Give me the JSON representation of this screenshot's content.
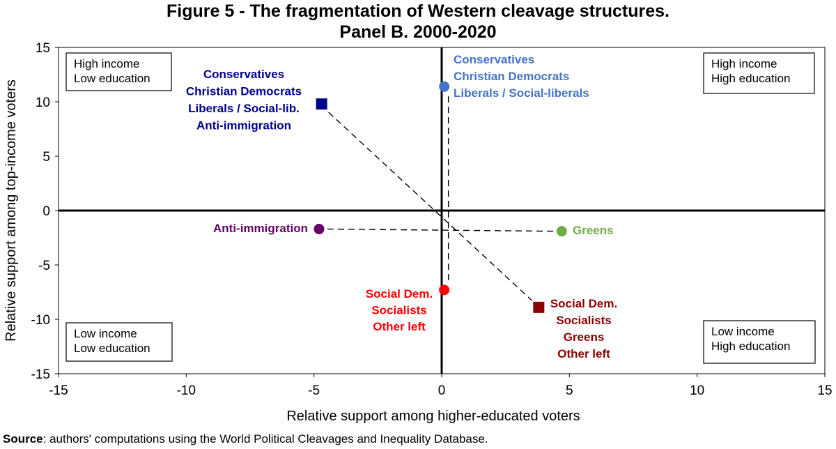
{
  "chart_data": {
    "type": "scatter",
    "title": "Figure 5 - The fragmentation of Western cleavage structures.",
    "subtitle": "Panel B. 2000-2020",
    "xlabel": "Relative support among higher-educated voters",
    "ylabel": "Relative support among top-income voters",
    "xlim": [
      -15,
      15
    ],
    "ylim": [
      -15,
      15
    ],
    "xticks": [
      -15,
      -10,
      -5,
      0,
      5,
      10,
      15
    ],
    "yticks": [
      -15,
      -10,
      -5,
      0,
      5,
      10,
      15
    ],
    "xtick_labels": [
      "-15",
      "-10",
      "-5",
      "0",
      "5",
      "10",
      "15"
    ],
    "ytick_labels": [
      "-15",
      "-10",
      "-5",
      "0",
      "5",
      "10",
      "15"
    ],
    "points": [
      {
        "id": "right-bloc",
        "x": -4.7,
        "y": 9.8,
        "marker": "square",
        "color": "#00008b",
        "label": [
          "Conservatives",
          "Christian Democrats",
          "Liberals / Social-lib.",
          "Anti-immigration"
        ]
      },
      {
        "id": "left-bloc",
        "x": 3.8,
        "y": -8.9,
        "marker": "square",
        "color": "#8b0000",
        "label": [
          "Social Dem.",
          "Socialists",
          "Greens",
          "Other left"
        ]
      },
      {
        "id": "conservatives-liberals",
        "x": 0.1,
        "y": 11.4,
        "marker": "circle",
        "color": "#4472c4",
        "label": [
          "Conservatives",
          "Christian Democrats",
          "Liberals / Social-liberals"
        ]
      },
      {
        "id": "social-dem-other-left",
        "x": 0.1,
        "y": -7.3,
        "marker": "circle",
        "color": "#ff0000",
        "label": [
          "Social Dem.",
          "Socialists",
          "Other left"
        ]
      },
      {
        "id": "anti-immigration",
        "x": -4.8,
        "y": -1.7,
        "marker": "circle",
        "color": "#660066",
        "label": [
          "Anti-immigration"
        ]
      },
      {
        "id": "greens",
        "x": 4.7,
        "y": -1.9,
        "marker": "circle",
        "color": "#70ad47",
        "label": [
          "Greens"
        ]
      }
    ],
    "dashed_links": [
      {
        "from": "right-bloc",
        "to": "left-bloc"
      },
      {
        "from": "anti-immigration",
        "to": "greens"
      },
      {
        "from": "conservatives-liberals",
        "to": "social-dem-other-left"
      }
    ],
    "quadrant_labels": {
      "top_left": [
        "High income",
        "Low education"
      ],
      "top_right": [
        "High income",
        "High education"
      ],
      "bottom_left": [
        "Low income",
        "Low education"
      ],
      "bottom_right": [
        "Low income",
        "High education"
      ]
    }
  },
  "source": {
    "label": "Source",
    "text": ": authors' computations using the World Political Cleavages and Inequality Database."
  }
}
